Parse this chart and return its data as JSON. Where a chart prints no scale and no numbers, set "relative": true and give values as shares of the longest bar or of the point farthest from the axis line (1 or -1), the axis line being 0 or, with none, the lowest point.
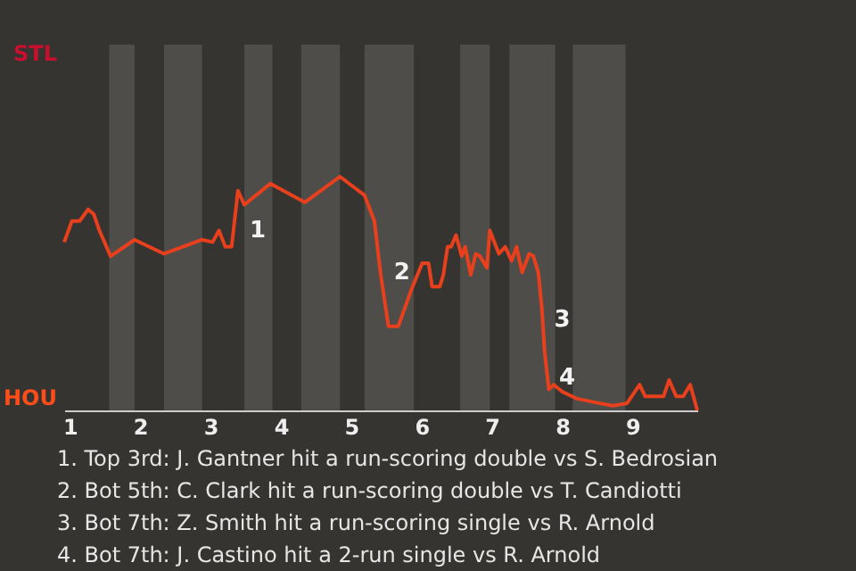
{
  "chart_data": {
    "type": "line",
    "relative": true,
    "x": [
      0.92,
      1.03,
      1.14,
      1.26,
      1.34,
      1.42,
      1.58,
      1.92,
      2.34,
      2.88,
      3.03,
      3.12,
      3.21,
      3.3,
      3.39,
      3.48,
      3.85,
      4.34,
      4.84,
      5.19,
      5.33,
      5.42,
      5.53,
      5.67,
      5.86,
      6.01,
      6.1,
      6.15,
      6.26,
      6.31,
      6.37,
      6.42,
      6.49,
      6.57,
      6.62,
      6.7,
      6.77,
      6.83,
      6.93,
      6.97,
      7.1,
      7.19,
      7.28,
      7.35,
      7.43,
      7.53,
      7.59,
      7.66,
      7.71,
      7.75,
      7.81,
      7.88,
      8.0,
      8.21,
      8.54,
      8.72,
      8.92,
      9.1,
      9.18,
      9.44,
      9.52,
      9.62,
      9.72,
      9.82,
      9.92
    ],
    "series": [
      {
        "color": "#e8401c",
        "values": [
          0.72,
          0.81,
          0.81,
          0.86,
          0.84,
          0.77,
          0.66,
          0.73,
          0.67,
          0.73,
          0.72,
          0.77,
          0.7,
          0.7,
          0.94,
          0.88,
          0.97,
          0.89,
          1,
          0.92,
          0.81,
          0.58,
          0.36,
          0.36,
          0.52,
          0.63,
          0.63,
          0.53,
          0.53,
          0.58,
          0.7,
          0.7,
          0.75,
          0.66,
          0.7,
          0.58,
          0.67,
          0.66,
          0.61,
          0.77,
          0.67,
          0.7,
          0.64,
          0.7,
          0.59,
          0.67,
          0.66,
          0.59,
          0.44,
          0.25,
          0.09,
          0.11,
          0.08,
          0.05,
          0.03,
          0.02,
          0.03,
          0.11,
          0.06,
          0.06,
          0.13,
          0.06,
          0.06,
          0.11,
          0
        ]
      }
    ],
    "xlim": [
      0.92,
      9.92
    ],
    "xticks": [
      1,
      2,
      3,
      4,
      5,
      6,
      7,
      8,
      9
    ],
    "bands": [
      {
        "axis": "x",
        "from": 1.56,
        "to": 1.92,
        "color": "#4f4d4a"
      },
      {
        "axis": "x",
        "from": 2.34,
        "to": 2.88,
        "color": "#4f4d4a"
      },
      {
        "axis": "x",
        "from": 3.48,
        "to": 3.88,
        "color": "#4f4d4a"
      },
      {
        "axis": "x",
        "from": 4.29,
        "to": 4.84,
        "color": "#4f4d4a"
      },
      {
        "axis": "x",
        "from": 5.19,
        "to": 5.89,
        "color": "#4f4d4a"
      },
      {
        "axis": "x",
        "from": 6.55,
        "to": 6.97,
        "color": "#4f4d4a"
      },
      {
        "axis": "x",
        "from": 7.25,
        "to": 7.9,
        "color": "#4f4d4a"
      },
      {
        "axis": "x",
        "from": 8.15,
        "to": 8.9,
        "color": "#4f4d4a"
      }
    ],
    "annotations": [
      "STL",
      "HOU",
      {
        "text": "1",
        "x": 3.48,
        "y": 0.77
      },
      {
        "text": "2",
        "x": 5.53,
        "y": 0.59
      },
      {
        "text": "3",
        "x": 7.81,
        "y": 0.39
      },
      {
        "text": "4",
        "x": 7.88,
        "y": 0.14
      },
      "1. Top 3rd: J. Gantner hit a run-scoring double vs S. Bedrosian",
      "2. Bot 5th: C. Clark hit a run-scoring double vs T. Candiotti",
      "3. Bot 7th: Z. Smith hit a run-scoring single vs R. Arnold",
      "4. Bot 7th: J. Castino hit a 2-run single vs R. Arnold"
    ]
  }
}
